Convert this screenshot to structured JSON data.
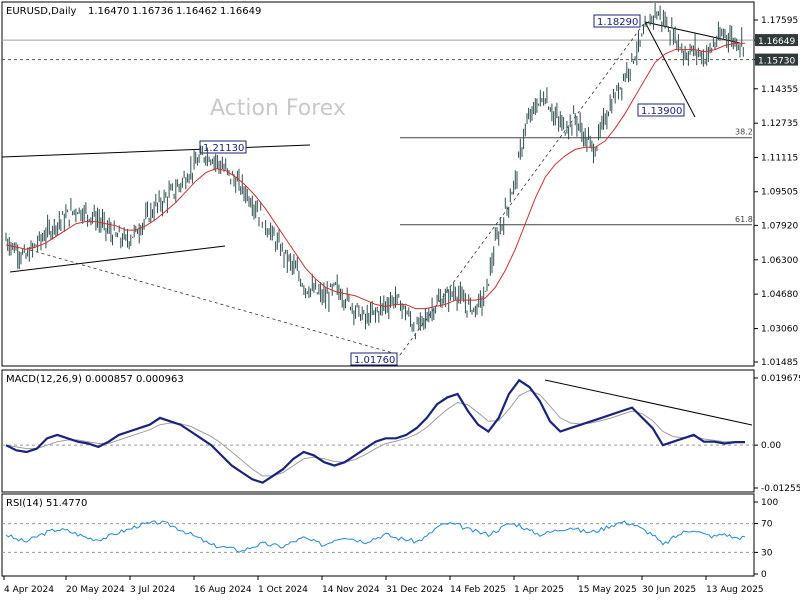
{
  "chart_data": [
    {
      "type": "candlestick",
      "title": "EURUSD,Daily",
      "ohlc": {
        "open": "1.16470",
        "high": "1.16736",
        "low": "1.16462",
        "close": "1.16649"
      },
      "watermark": "Action Forex",
      "y_ticks": [
        "1.17595",
        "1.16649",
        "1.15730",
        "1.14355",
        "1.12735",
        "1.11115",
        "1.09505",
        "1.07920",
        "1.06300",
        "1.04680",
        "1.03060",
        "1.01485"
      ],
      "ylim": [
        1.01485,
        1.17595
      ],
      "price_markers": [
        {
          "label": "1.16649",
          "value": 1.16649,
          "style": "dark"
        },
        {
          "label": "1.15730",
          "value": 1.1573,
          "style": "dark"
        }
      ],
      "annotations": [
        {
          "label": "1.18290",
          "value": 1.1829,
          "date": "2025-07-01"
        },
        {
          "label": "1.13900",
          "value": 1.139,
          "date": "2025-08-01"
        },
        {
          "label": "1.21130",
          "value": 1.2113,
          "date": "2024-09-25"
        },
        {
          "label": "1.01760",
          "value": 1.0176,
          "date": "2025-01-13"
        }
      ],
      "fib_levels": [
        {
          "label": "38.2",
          "value": 1.1205
        },
        {
          "label": "61.8",
          "value": 1.0795
        }
      ],
      "series": [
        {
          "name": "Close",
          "values": [
            1.0725,
            1.068,
            1.064,
            1.07,
            1.075,
            1.08,
            1.083,
            1.087,
            1.085,
            1.083,
            1.078,
            1.074,
            1.072,
            1.076,
            1.082,
            1.088,
            1.092,
            1.096,
            1.102,
            1.108,
            1.113,
            1.11,
            1.105,
            1.1,
            1.095,
            1.088,
            1.08,
            1.072,
            1.065,
            1.058,
            1.05,
            1.048,
            1.045,
            1.05,
            1.045,
            1.04,
            1.035,
            1.038,
            1.042,
            1.045,
            1.039,
            1.03,
            1.035,
            1.042,
            1.045,
            1.048,
            1.042,
            1.04,
            1.046,
            1.07,
            1.085,
            1.1,
            1.125,
            1.135,
            1.14,
            1.13,
            1.125,
            1.13,
            1.12,
            1.115,
            1.13,
            1.14,
            1.15,
            1.16,
            1.17,
            1.18,
            1.175,
            1.168,
            1.16,
            1.162,
            1.158,
            1.165,
            1.17,
            1.166,
            1.165
          ]
        },
        {
          "name": "MA",
          "values": [
            1.07,
            1.069,
            1.068,
            1.069,
            1.071,
            1.074,
            1.077,
            1.08,
            1.081,
            1.081,
            1.08,
            1.079,
            1.077,
            1.077,
            1.079,
            1.082,
            1.086,
            1.09,
            1.095,
            1.1,
            1.104,
            1.106,
            1.105,
            1.102,
            1.098,
            1.093,
            1.087,
            1.08,
            1.073,
            1.066,
            1.059,
            1.054,
            1.05,
            1.048,
            1.047,
            1.046,
            1.044,
            1.042,
            1.041,
            1.042,
            1.042,
            1.04,
            1.04,
            1.041,
            1.042,
            1.044,
            1.044,
            1.044,
            1.045,
            1.05,
            1.058,
            1.068,
            1.08,
            1.092,
            1.102,
            1.108,
            1.112,
            1.115,
            1.116,
            1.116,
            1.119,
            1.125,
            1.132,
            1.14,
            1.148,
            1.156,
            1.16,
            1.162,
            1.162,
            1.162,
            1.161,
            1.162,
            1.164,
            1.165,
            1.165
          ]
        }
      ],
      "x_labels": [
        "4 Apr 2024",
        "20 May 2024",
        "3 Jul 2024",
        "16 Aug 2024",
        "1 Oct 2024",
        "14 Nov 2024",
        "31 Dec 2024",
        "14 Feb 2025",
        "1 Apr 2025",
        "15 May 2025",
        "30 Jun 2025",
        "13 Aug 2025"
      ]
    },
    {
      "type": "line",
      "title": "MACD(12,26,9) 0.000857 0.000963",
      "y_ticks": [
        "0.019679",
        "0.00",
        "-0.012552"
      ],
      "ylim": [
        -0.012552,
        0.019679
      ],
      "series": [
        {
          "name": "MACD",
          "values": [
            0.0,
            -0.0015,
            -0.002,
            -0.001,
            0.002,
            0.003,
            0.002,
            0.001,
            0.0005,
            -0.0005,
            0.001,
            0.003,
            0.004,
            0.005,
            0.006,
            0.008,
            0.007,
            0.006,
            0.004,
            0.002,
            0.0,
            -0.003,
            -0.006,
            -0.008,
            -0.01,
            -0.011,
            -0.009,
            -0.007,
            -0.004,
            -0.002,
            -0.003,
            -0.005,
            -0.006,
            -0.005,
            -0.003,
            -0.001,
            0.001,
            0.002,
            0.002,
            0.003,
            0.005,
            0.008,
            0.012,
            0.014,
            0.015,
            0.01,
            0.006,
            0.004,
            0.008,
            0.015,
            0.019,
            0.017,
            0.013,
            0.007,
            0.004,
            0.005,
            0.006,
            0.007,
            0.008,
            0.009,
            0.01,
            0.011,
            0.008,
            0.005,
            0.0,
            0.001,
            0.002,
            0.003,
            0.001,
            0.001,
            0.0005,
            0.0009,
            0.0009
          ]
        },
        {
          "name": "Signal",
          "values": [
            0.0,
            -0.0005,
            -0.001,
            -0.001,
            0.0,
            0.001,
            0.0015,
            0.0015,
            0.001,
            0.0005,
            0.0005,
            0.0015,
            0.0025,
            0.0035,
            0.0045,
            0.006,
            0.0065,
            0.0063,
            0.0055,
            0.004,
            0.0025,
            0.0005,
            -0.002,
            -0.0045,
            -0.007,
            -0.009,
            -0.009,
            -0.008,
            -0.006,
            -0.004,
            -0.0035,
            -0.004,
            -0.0048,
            -0.005,
            -0.0042,
            -0.0028,
            -0.001,
            0.0005,
            0.0012,
            0.002,
            0.0032,
            0.0052,
            0.008,
            0.0105,
            0.0125,
            0.0118,
            0.0095,
            0.007,
            0.0072,
            0.0105,
            0.0145,
            0.016,
            0.0148,
            0.0115,
            0.008,
            0.0065,
            0.0062,
            0.0065,
            0.0072,
            0.008,
            0.009,
            0.01,
            0.0092,
            0.0072,
            0.004,
            0.0025,
            0.0022,
            0.0026,
            0.0018,
            0.0014,
            0.001,
            0.001,
            0.001
          ]
        }
      ]
    },
    {
      "type": "line",
      "title": "RSI(14) 51.4770",
      "y_ticks": [
        "100",
        "70",
        "30",
        "0"
      ],
      "ylim": [
        0,
        100
      ],
      "series": [
        {
          "name": "RSI",
          "values": [
            55,
            48,
            45,
            52,
            58,
            62,
            60,
            55,
            50,
            48,
            52,
            58,
            62,
            68,
            70,
            72,
            68,
            62,
            55,
            48,
            40,
            38,
            35,
            32,
            38,
            42,
            40,
            38,
            45,
            50,
            45,
            40,
            48,
            52,
            48,
            45,
            50,
            55,
            50,
            48,
            45,
            52,
            65,
            70,
            68,
            62,
            58,
            55,
            62,
            70,
            68,
            60,
            55,
            58,
            62,
            65,
            60,
            58,
            62,
            68,
            72,
            70,
            62,
            55,
            40,
            50,
            58,
            62,
            55,
            52,
            56,
            50,
            51.477
          ]
        }
      ]
    }
  ]
}
